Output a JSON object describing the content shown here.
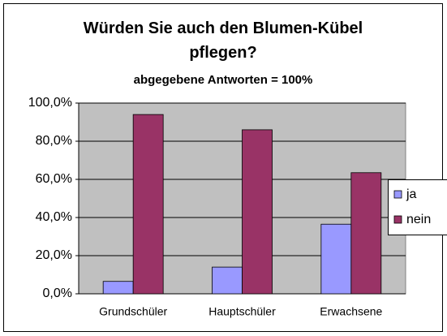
{
  "chart_data": {
    "type": "bar",
    "title": "Würden Sie auch den Blumen-Kübel pflegen?",
    "subtitle": "abgegebene Antworten = 100%",
    "categories": [
      "Grundschüler",
      "Hauptschüler",
      "Erwachsene"
    ],
    "series": [
      {
        "name": "ja",
        "color": "#9999ff",
        "values": [
          6.5,
          14,
          36.5
        ]
      },
      {
        "name": "nein",
        "color": "#993366",
        "values": [
          94,
          86,
          63.5
        ]
      }
    ],
    "ylim": [
      0,
      100
    ],
    "yticks": [
      {
        "value": 0,
        "label": "0,0%"
      },
      {
        "value": 20,
        "label": "20,0%"
      },
      {
        "value": 40,
        "label": "40,0%"
      },
      {
        "value": 60,
        "label": "60,0%"
      },
      {
        "value": 80,
        "label": "80,0%"
      },
      {
        "value": 100,
        "label": "100,0%"
      }
    ],
    "grid": true,
    "legend": "right"
  }
}
